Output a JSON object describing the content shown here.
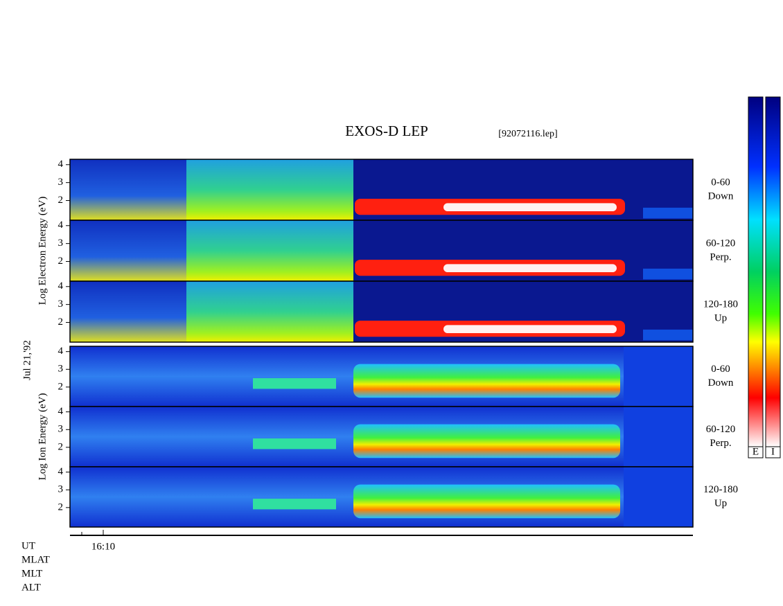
{
  "header": {
    "title": "EXOS-D LEP",
    "file": "[92072116.lep]"
  },
  "groups": [
    {
      "ylabel": "Log Electron Energy (eV)",
      "panels": [
        {
          "lines": [
            "0-60",
            "Down"
          ]
        },
        {
          "lines": [
            "60-120",
            "Perp."
          ]
        },
        {
          "lines": [
            "120-180",
            "Up"
          ]
        }
      ]
    },
    {
      "ylabel": "Log Ion Energy (eV)",
      "panels": [
        {
          "lines": [
            "0-60",
            "Down"
          ]
        },
        {
          "lines": [
            "60-120",
            "Perp."
          ]
        },
        {
          "lines": [
            "120-180",
            "Up"
          ]
        }
      ]
    }
  ],
  "date": "Jul 21,'92",
  "yaxis": {
    "ylim": [
      0.9,
      4.3
    ],
    "yticks": [
      2,
      3,
      4
    ]
  },
  "xaxis": {
    "tick_label": "16:10"
  },
  "rows": [
    "UT",
    "MLAT",
    "MLT",
    "ALT"
  ],
  "colorbars": [
    "E",
    "I"
  ]
}
